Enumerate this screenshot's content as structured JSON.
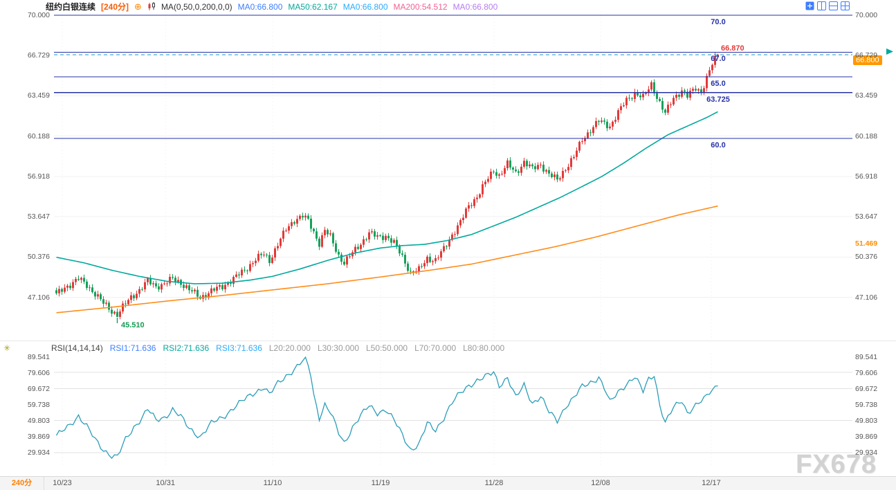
{
  "header": {
    "symbol": "纽约白银连续",
    "period": "[240分]",
    "ma_title": "MA(0,50,0,200,0,0)",
    "ma_items": [
      {
        "label": "MA0:66.800",
        "color": "#3d7eff"
      },
      {
        "label": "MA50:62.167",
        "color": "#00a99d"
      },
      {
        "label": "MA0:66.800",
        "color": "#29aaff"
      },
      {
        "label": "MA200:54.512",
        "color": "#f06292"
      },
      {
        "label": "MA0:66.800",
        "color": "#b57bee"
      }
    ]
  },
  "price_axis": {
    "ticks": [
      "70.000",
      "66.729",
      "63.459",
      "60.188",
      "56.918",
      "53.647",
      "50.376",
      "47.106"
    ],
    "current_badge": "66.800",
    "secondary_badge": "51.469"
  },
  "levels": [
    {
      "label": "70.0",
      "price": 70.0
    },
    {
      "label": "67.0",
      "price": 67.0
    },
    {
      "label": "65.0",
      "price": 65.0
    },
    {
      "label": "63.725",
      "price": 63.725
    },
    {
      "label": "60.0",
      "price": 60.0
    }
  ],
  "annotations": {
    "low": {
      "text": "45.510",
      "price": 45.51
    },
    "high": {
      "text": "66.870",
      "price": 66.87
    }
  },
  "rsi_pane": {
    "title": "RSI(14,14,14)",
    "items": [
      {
        "label": "RSI1:71.636",
        "color": "#3d7eff"
      },
      {
        "label": "RSI2:71.636",
        "color": "#00a99d"
      },
      {
        "label": "RSI3:71.636",
        "color": "#29aaff"
      },
      {
        "label": "L20:20.000",
        "color": "#9a9a9a"
      },
      {
        "label": "L30:30.000",
        "color": "#9a9a9a"
      },
      {
        "label": "L50:50.000",
        "color": "#9a9a9a"
      },
      {
        "label": "L70:70.000",
        "color": "#9a9a9a"
      },
      {
        "label": "L80:80.000",
        "color": "#9a9a9a"
      }
    ],
    "ticks": [
      "89.541",
      "79.606",
      "69.672",
      "59.738",
      "49.803",
      "39.869",
      "29.934"
    ]
  },
  "x_axis": {
    "period": "240分",
    "dates": [
      {
        "label": "10/23",
        "bar": 2.5
      },
      {
        "label": "10/31",
        "bar": 39.8
      },
      {
        "label": "11/10",
        "bar": 78.5
      },
      {
        "label": "11/19",
        "bar": 117.5
      },
      {
        "label": "11/28",
        "bar": 158.5
      },
      {
        "label": "12/08",
        "bar": 197
      },
      {
        "label": "12/17",
        "bar": 237
      }
    ]
  },
  "watermark": "FX678",
  "colors": {
    "up": "#e23a3a",
    "down": "#17a15b",
    "ma50": "#00a99d",
    "ma200": "#ff8c1a",
    "rsi": "#2a9db8",
    "level_line": "#2431a8",
    "current_line": "#2aa0c8",
    "badge_bg": "#ff9800",
    "grid": "#f0f0f0"
  },
  "chart_data": {
    "type": "candlestick",
    "symbol": "纽约白银连续",
    "interval": "240分",
    "bars": 240,
    "last_price": 66.8,
    "high_marker": 66.87,
    "low_marker": 45.51,
    "ylim": [
      43.5,
      70.5
    ],
    "y_ticks": [
      70.0,
      66.729,
      63.459,
      60.188,
      56.918,
      53.647,
      50.376,
      47.106
    ],
    "horizontal_levels": [
      70.0,
      67.0,
      65.0,
      63.725,
      60.0
    ],
    "x_tick_labels": [
      "10/23",
      "10/31",
      "11/10",
      "11/19",
      "11/28",
      "12/08",
      "12/17"
    ],
    "close_anchors": [
      [
        0,
        47.3
      ],
      [
        3,
        47.9
      ],
      [
        6,
        48.3
      ],
      [
        8,
        48.6
      ],
      [
        11,
        48.1
      ],
      [
        14,
        47.4
      ],
      [
        17,
        46.6
      ],
      [
        20,
        46.0
      ],
      [
        22,
        45.7
      ],
      [
        24,
        46.3
      ],
      [
        27,
        47.1
      ],
      [
        30,
        47.7
      ],
      [
        33,
        48.4
      ],
      [
        36,
        48.0
      ],
      [
        39,
        48.2
      ],
      [
        42,
        48.6
      ],
      [
        45,
        48.3
      ],
      [
        48,
        47.7
      ],
      [
        52,
        47.1
      ],
      [
        56,
        47.6
      ],
      [
        60,
        48.0
      ],
      [
        64,
        48.6
      ],
      [
        68,
        49.3
      ],
      [
        72,
        50.2
      ],
      [
        75,
        50.6
      ],
      [
        77,
        50.1
      ],
      [
        80,
        51.4
      ],
      [
        83,
        52.6
      ],
      [
        86,
        53.4
      ],
      [
        89,
        53.7
      ],
      [
        91,
        53.3
      ],
      [
        93,
        52.4
      ],
      [
        95,
        51.5
      ],
      [
        97,
        52.5
      ],
      [
        99,
        52.0
      ],
      [
        102,
        50.5
      ],
      [
        104,
        49.9
      ],
      [
        107,
        50.7
      ],
      [
        110,
        51.5
      ],
      [
        113,
        52.3
      ],
      [
        116,
        52.0
      ],
      [
        119,
        52.1
      ],
      [
        122,
        51.5
      ],
      [
        125,
        50.4
      ],
      [
        128,
        49.1
      ],
      [
        131,
        49.3
      ],
      [
        134,
        50.3
      ],
      [
        137,
        50.1
      ],
      [
        140,
        51.0
      ],
      [
        143,
        52.2
      ],
      [
        146,
        53.2
      ],
      [
        149,
        54.5
      ],
      [
        152,
        55.3
      ],
      [
        155,
        56.4
      ],
      [
        158,
        57.4
      ],
      [
        160,
        57.0
      ],
      [
        163,
        57.9
      ],
      [
        166,
        57.2
      ],
      [
        169,
        58.1
      ],
      [
        172,
        57.5
      ],
      [
        175,
        57.9
      ],
      [
        178,
        57.1
      ],
      [
        181,
        56.6
      ],
      [
        184,
        57.6
      ],
      [
        187,
        58.5
      ],
      [
        190,
        59.9
      ],
      [
        193,
        60.7
      ],
      [
        196,
        61.4
      ],
      [
        198,
        61.2
      ],
      [
        200,
        61.0
      ],
      [
        203,
        62.1
      ],
      [
        206,
        63.1
      ],
      [
        209,
        63.7
      ],
      [
        212,
        63.3
      ],
      [
        215,
        64.4
      ],
      [
        218,
        62.9
      ],
      [
        220,
        62.0
      ],
      [
        223,
        63.3
      ],
      [
        226,
        63.9
      ],
      [
        228,
        63.4
      ],
      [
        231,
        64.1
      ],
      [
        233,
        63.8
      ],
      [
        235,
        64.9
      ],
      [
        237,
        66.0
      ],
      [
        239,
        66.8
      ]
    ],
    "overlays": [
      {
        "name": "MA50",
        "value": 62.167,
        "color": "#00a99d",
        "anchors": [
          [
            0,
            50.35
          ],
          [
            10,
            49.9
          ],
          [
            20,
            49.3
          ],
          [
            30,
            48.8
          ],
          [
            40,
            48.4
          ],
          [
            50,
            48.2
          ],
          [
            60,
            48.25
          ],
          [
            70,
            48.5
          ],
          [
            78,
            48.8
          ],
          [
            88,
            49.4
          ],
          [
            98,
            50.1
          ],
          [
            108,
            50.7
          ],
          [
            117,
            51.1
          ],
          [
            125,
            51.3
          ],
          [
            133,
            51.4
          ],
          [
            141,
            51.7
          ],
          [
            150,
            52.2
          ],
          [
            158,
            52.9
          ],
          [
            166,
            53.6
          ],
          [
            174,
            54.4
          ],
          [
            182,
            55.2
          ],
          [
            190,
            56.1
          ],
          [
            197,
            56.9
          ],
          [
            205,
            58.0
          ],
          [
            213,
            59.2
          ],
          [
            221,
            60.3
          ],
          [
            229,
            61.1
          ],
          [
            235,
            61.7
          ],
          [
            239,
            62.167
          ]
        ]
      },
      {
        "name": "MA200",
        "value": 54.512,
        "color": "#ff8c1a",
        "anchors": [
          [
            0,
            45.85
          ],
          [
            20,
            46.3
          ],
          [
            40,
            46.8
          ],
          [
            60,
            47.25
          ],
          [
            78,
            47.7
          ],
          [
            98,
            48.2
          ],
          [
            117,
            48.75
          ],
          [
            135,
            49.3
          ],
          [
            150,
            49.8
          ],
          [
            165,
            50.5
          ],
          [
            180,
            51.2
          ],
          [
            195,
            52.0
          ],
          [
            210,
            52.9
          ],
          [
            225,
            53.8
          ],
          [
            239,
            54.512
          ]
        ]
      }
    ],
    "subchart": {
      "type": "line",
      "name": "RSI(14,14,14)",
      "value": 71.636,
      "color": "#2a9db8",
      "ylim": [
        25,
        92
      ],
      "y_ticks": [
        89.541,
        79.606,
        69.672,
        59.738,
        49.803,
        39.869,
        29.934
      ],
      "levels": [
        20,
        30,
        50,
        70,
        80
      ],
      "anchors": [
        [
          0,
          40
        ],
        [
          4,
          46
        ],
        [
          8,
          53
        ],
        [
          11,
          46
        ],
        [
          14,
          38
        ],
        [
          17,
          32
        ],
        [
          20,
          28
        ],
        [
          22,
          27
        ],
        [
          25,
          38
        ],
        [
          28,
          46
        ],
        [
          31,
          52
        ],
        [
          33,
          57
        ],
        [
          36,
          50
        ],
        [
          39,
          52
        ],
        [
          42,
          57
        ],
        [
          45,
          52
        ],
        [
          48,
          45
        ],
        [
          52,
          40
        ],
        [
          56,
          48
        ],
        [
          60,
          52
        ],
        [
          64,
          58
        ],
        [
          68,
          63
        ],
        [
          72,
          68
        ],
        [
          75,
          71
        ],
        [
          77,
          66
        ],
        [
          80,
          73
        ],
        [
          83,
          78
        ],
        [
          86,
          82
        ],
        [
          89,
          87
        ],
        [
          90,
          89.4
        ],
        [
          92,
          78
        ],
        [
          93,
          66
        ],
        [
          95,
          52
        ],
        [
          97,
          60
        ],
        [
          99,
          55
        ],
        [
          102,
          42
        ],
        [
          104,
          36
        ],
        [
          107,
          46
        ],
        [
          110,
          53
        ],
        [
          113,
          59
        ],
        [
          116,
          55
        ],
        [
          119,
          57
        ],
        [
          122,
          50
        ],
        [
          125,
          41
        ],
        [
          128,
          32
        ],
        [
          131,
          35
        ],
        [
          134,
          48
        ],
        [
          137,
          44
        ],
        [
          140,
          52
        ],
        [
          143,
          61
        ],
        [
          146,
          67
        ],
        [
          149,
          72
        ],
        [
          152,
          75
        ],
        [
          155,
          77
        ],
        [
          158,
          80
        ],
        [
          160,
          72
        ],
        [
          163,
          77
        ],
        [
          166,
          64
        ],
        [
          169,
          72
        ],
        [
          172,
          61
        ],
        [
          175,
          65
        ],
        [
          178,
          55
        ],
        [
          181,
          50
        ],
        [
          184,
          59
        ],
        [
          187,
          64
        ],
        [
          190,
          71
        ],
        [
          193,
          74
        ],
        [
          196,
          77
        ],
        [
          198,
          70
        ],
        [
          200,
          61
        ],
        [
          203,
          68
        ],
        [
          206,
          73
        ],
        [
          209,
          77
        ],
        [
          212,
          68
        ],
        [
          214,
          76
        ],
        [
          216,
          79
        ],
        [
          218,
          60
        ],
        [
          220,
          48
        ],
        [
          223,
          58
        ],
        [
          226,
          63
        ],
        [
          228,
          55
        ],
        [
          231,
          59
        ],
        [
          234,
          63
        ],
        [
          236,
          68
        ],
        [
          238,
          71
        ],
        [
          239,
          71.636
        ]
      ]
    }
  }
}
